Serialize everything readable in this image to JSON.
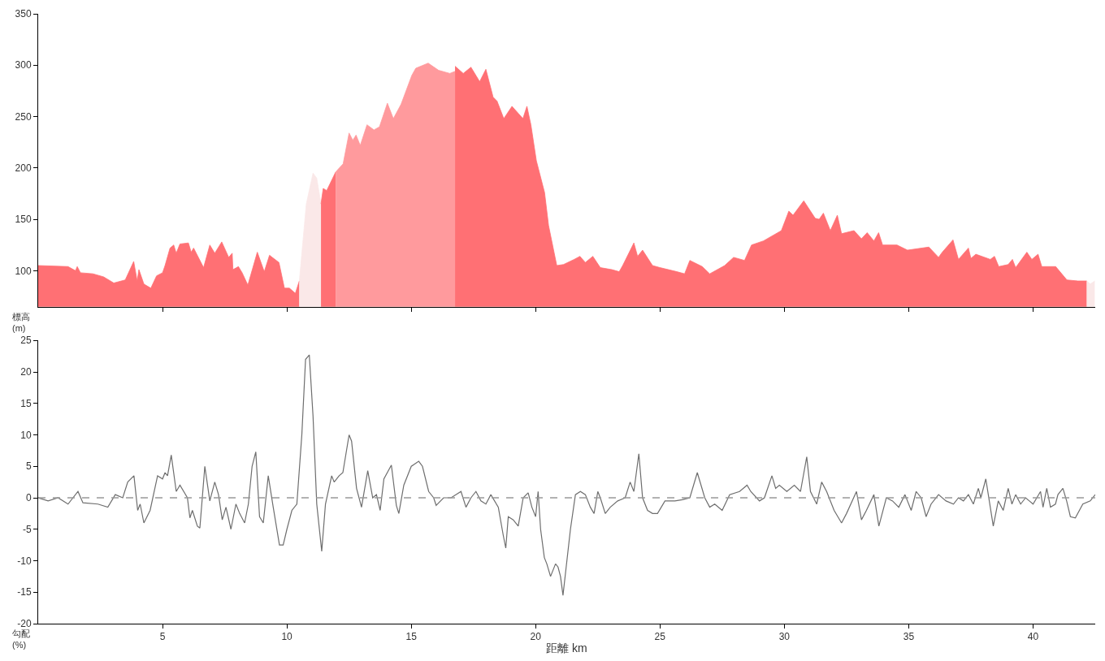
{
  "chart_data": [
    {
      "type": "area",
      "ylabel": "標高\n(m)",
      "xlim": [
        0,
        42.5
      ],
      "ylim": [
        65,
        350
      ],
      "tick_labels": "y",
      "xticks": [
        {
          "value": 5,
          "label": null
        },
        {
          "value": 10,
          "label": null
        },
        {
          "value": 15,
          "label": null
        },
        {
          "value": 20,
          "label": null
        },
        {
          "value": 25,
          "label": null
        },
        {
          "value": 30,
          "label": null
        },
        {
          "value": 35,
          "label": null
        },
        {
          "value": 40,
          "label": null
        }
      ],
      "yticks": [
        100,
        150,
        200,
        250,
        300,
        350
      ],
      "series": [
        {
          "color": "#ff7074",
          "x": [
            0,
            1.2,
            1.5,
            1.57,
            1.7,
            2.2,
            2.63,
            3.04,
            3.5,
            3.84,
            3.98,
            4.05,
            4.25,
            4.53,
            4.76,
            5.0,
            5.1,
            5.3,
            5.45,
            5.55,
            5.7,
            6.04,
            6.15,
            6.25,
            6.65,
            6.9,
            7.1,
            7.38,
            7.66,
            7.8,
            7.83,
            8.05,
            8.2,
            8.43,
            8.81,
            9.09,
            9.3,
            9.68,
            9.9,
            10.1,
            10.34,
            10.5
          ],
          "values": [
            105,
            104,
            100,
            104,
            98,
            97,
            94,
            88,
            91,
            109,
            90,
            101,
            87,
            83,
            95,
            98,
            105,
            122,
            125,
            117,
            126,
            127,
            118,
            122,
            103,
            125,
            117,
            128,
            113,
            117,
            101,
            104,
            98,
            86,
            118,
            99,
            115,
            108,
            83,
            83,
            78,
            90
          ]
        },
        {
          "color": "#fae8e8",
          "x": [
            10.5,
            10.78,
            11.05,
            11.2,
            11.37
          ],
          "values": [
            90,
            165,
            195,
            190,
            165
          ]
        },
        {
          "color": "#ff7074",
          "x": [
            11.37,
            11.46,
            11.6,
            11.8,
            11.96
          ],
          "values": [
            165,
            180,
            178,
            188,
            196
          ]
        },
        {
          "color": "#ff9a9d",
          "x": [
            11.96,
            12.07,
            12.26,
            12.5,
            12.65,
            12.78,
            12.95,
            13.22,
            13.5,
            13.72,
            14.04,
            14.28,
            14.59,
            15.02,
            15.18,
            15.68,
            16.1,
            16.55,
            16.76
          ],
          "values": [
            196,
            199,
            204,
            234,
            227,
            232,
            222,
            242,
            237,
            240,
            263,
            248,
            262,
            290,
            297,
            302,
            295,
            292,
            294
          ]
        },
        {
          "color": "#ff7074",
          "x": [
            16.76,
            17.09,
            17.4,
            17.75,
            18.0,
            18.29,
            18.45,
            18.72,
            19.05,
            19.49,
            19.65,
            19.81,
            20.03,
            20.36,
            20.52,
            20.85,
            21.12,
            21.55,
            21.78,
            22.0,
            22.3,
            22.6,
            23.07,
            23.36,
            23.5,
            23.95,
            24.1,
            24.3,
            24.7,
            25.0,
            25.68,
            25.99,
            26.2,
            26.7,
            27.0,
            27.6,
            27.96,
            28.4,
            28.68,
            29.16,
            29.88,
            30.18,
            30.35,
            30.78,
            31.24,
            31.4,
            31.57,
            31.85,
            32.13,
            32.3,
            32.8,
            33.1,
            33.33,
            33.6,
            33.79,
            33.95,
            34.53,
            34.95,
            35.81,
            36.2,
            36.35,
            36.78,
            37.0,
            37.4,
            37.5,
            37.7,
            38.28,
            38.45,
            38.62,
            39.0,
            39.17,
            39.3,
            39.75,
            39.95,
            40.2,
            40.35,
            40.91,
            41.36,
            41.8,
            42.16
          ],
          "values": [
            299,
            292,
            298,
            284,
            296,
            269,
            265,
            248,
            260,
            248,
            260,
            242,
            207,
            176,
            144,
            105,
            106,
            111,
            114,
            108,
            114,
            103,
            101,
            99,
            105,
            127,
            114,
            120,
            105,
            103,
            99,
            97,
            110,
            104,
            97,
            105,
            113,
            110,
            125,
            129,
            139,
            158,
            154,
            168,
            151,
            150,
            156,
            139,
            154,
            136,
            139,
            131,
            137,
            129,
            137,
            125,
            125,
            120,
            123,
            113,
            118,
            130,
            111,
            122,
            112,
            116,
            111,
            114,
            104,
            106,
            111,
            103,
            118,
            111,
            116,
            104,
            104,
            91,
            90,
            90
          ]
        },
        {
          "color": "#fae8e8",
          "x": [
            42.16,
            42.3,
            42.48
          ],
          "values": [
            90,
            87,
            90
          ]
        }
      ]
    },
    {
      "type": "line",
      "xlabel": "距離 km",
      "ylabel": "勾配\n(%)",
      "xlim": [
        0,
        42.5
      ],
      "ylim": [
        -20,
        25
      ],
      "xticks": [
        5,
        10,
        15,
        20,
        25,
        30,
        35,
        40
      ],
      "yticks": [
        -20,
        -15,
        -10,
        -5,
        0,
        5,
        10,
        15,
        20,
        25
      ],
      "marker": "none",
      "line_style": "solid",
      "ref_lines": [
        {
          "axis": "y",
          "value": 0,
          "color": "#999999",
          "line_style": "dashed"
        }
      ],
      "series": [
        {
          "color": "#6e6e6e",
          "x": [
            0,
            0.4,
            0.8,
            1.2,
            1.6,
            1.8,
            2.4,
            2.8,
            3.1,
            3.4,
            3.6,
            3.85,
            4.0,
            4.1,
            4.25,
            4.5,
            4.8,
            5.0,
            5.1,
            5.2,
            5.35,
            5.55,
            5.7,
            6.0,
            6.1,
            6.2,
            6.4,
            6.5,
            6.7,
            6.9,
            7.1,
            7.25,
            7.4,
            7.55,
            7.75,
            7.95,
            8.1,
            8.3,
            8.45,
            8.6,
            8.75,
            8.9,
            9.05,
            9.25,
            9.45,
            9.7,
            9.85,
            10.0,
            10.2,
            10.4,
            10.6,
            10.75,
            10.9,
            11.05,
            11.2,
            11.4,
            11.55,
            11.8,
            11.9,
            12.1,
            12.25,
            12.5,
            12.6,
            12.8,
            13.0,
            13.25,
            13.45,
            13.6,
            13.75,
            13.9,
            14.2,
            14.4,
            14.5,
            14.7,
            15.0,
            15.3,
            15.45,
            15.7,
            15.9,
            16.0,
            16.3,
            16.6,
            17.0,
            17.2,
            17.4,
            17.6,
            17.8,
            18.0,
            18.2,
            18.5,
            18.7,
            18.8,
            18.9,
            19.1,
            19.3,
            19.5,
            19.7,
            19.85,
            20.0,
            20.1,
            20.2,
            20.35,
            20.45,
            20.6,
            20.8,
            20.9,
            21.0,
            21.1,
            21.2,
            21.4,
            21.6,
            21.8,
            22.0,
            22.2,
            22.35,
            22.5,
            22.6,
            22.8,
            23.0,
            23.3,
            23.6,
            23.8,
            23.95,
            24.15,
            24.3,
            24.5,
            24.7,
            24.9,
            25.2,
            25.6,
            25.9,
            26.2,
            26.5,
            26.8,
            27.0,
            27.2,
            27.5,
            27.8,
            28.2,
            28.5,
            28.65,
            29.0,
            29.2,
            29.5,
            29.65,
            29.8,
            30.1,
            30.4,
            30.65,
            30.9,
            31.05,
            31.3,
            31.5,
            31.7,
            32.0,
            32.3,
            32.5,
            32.9,
            33.1,
            33.3,
            33.6,
            33.8,
            34.1,
            34.35,
            34.6,
            34.85,
            35.1,
            35.3,
            35.5,
            35.7,
            35.9,
            36.2,
            36.5,
            36.8,
            37.0,
            37.2,
            37.4,
            37.6,
            37.8,
            37.9,
            38.1,
            38.4,
            38.6,
            38.8,
            39.0,
            39.15,
            39.3,
            39.5,
            39.7,
            39.85,
            40.0,
            40.3,
            40.4,
            40.55,
            40.7,
            40.9,
            41.0,
            41.2,
            41.35,
            41.5,
            41.7,
            42.0,
            42.3,
            42.5
          ],
          "values": [
            0,
            -0.5,
            0,
            -1,
            1,
            -0.8,
            -1,
            -1.5,
            0.5,
            0,
            2.5,
            3.5,
            -2,
            -1,
            -4,
            -2,
            3.5,
            3,
            4,
            3.5,
            6.8,
            1,
            2,
            0,
            -3.2,
            -2,
            -4.5,
            -4.8,
            5,
            -0.5,
            2.5,
            0.5,
            -3.5,
            -1.5,
            -5,
            -1,
            -2.5,
            -4,
            -1,
            5,
            7.3,
            -3,
            -4,
            3.5,
            -1.5,
            -7.5,
            -7.5,
            -5,
            -2,
            -1,
            10,
            22,
            22.7,
            13,
            -1,
            -8.5,
            -1,
            3.5,
            2.5,
            3.5,
            4,
            10,
            9,
            1.5,
            -1.5,
            4.3,
            0,
            0.5,
            -2,
            3,
            5.2,
            -1.2,
            -2.5,
            2,
            5,
            5.8,
            5,
            1,
            0,
            -1.2,
            0,
            0,
            1,
            -1.5,
            0,
            1,
            -0.5,
            -1,
            0.5,
            -1.5,
            -6,
            -8,
            -3,
            -3.5,
            -4.5,
            0,
            0.8,
            -1.5,
            -3,
            1,
            -5,
            -9.5,
            -10.5,
            -12.5,
            -10.5,
            -11,
            -12.5,
            -15.5,
            -12,
            -5,
            0.5,
            1,
            0.5,
            -1.5,
            -2.5,
            1,
            0,
            -2.5,
            -1.5,
            -0.5,
            0,
            2.5,
            1,
            7,
            0,
            -2,
            -2.5,
            -2.5,
            -0.5,
            -0.5,
            -0.3,
            0,
            4,
            0,
            -1.5,
            -1,
            -2,
            0.5,
            1,
            2,
            1,
            -0.5,
            0,
            3.5,
            1.5,
            2,
            1,
            2,
            1,
            6.5,
            1,
            -1,
            2.5,
            1,
            -2,
            -4,
            -2.5,
            1,
            -3.5,
            -2,
            0.5,
            -4.5,
            0,
            -0.5,
            -1.5,
            0.5,
            -2,
            1,
            0,
            -3,
            -1,
            0.5,
            -0.5,
            -1,
            0,
            -0.5,
            0.5,
            -1,
            1.5,
            0,
            3,
            -4.5,
            -0.5,
            -2,
            1.5,
            -1,
            0.5,
            -1,
            0,
            -0.5,
            -1,
            1,
            -1.5,
            1.5,
            -1.5,
            -1,
            0.5,
            1.5,
            -0.5,
            -3,
            -3.2,
            -1,
            -0.5,
            0.5
          ]
        }
      ]
    }
  ]
}
